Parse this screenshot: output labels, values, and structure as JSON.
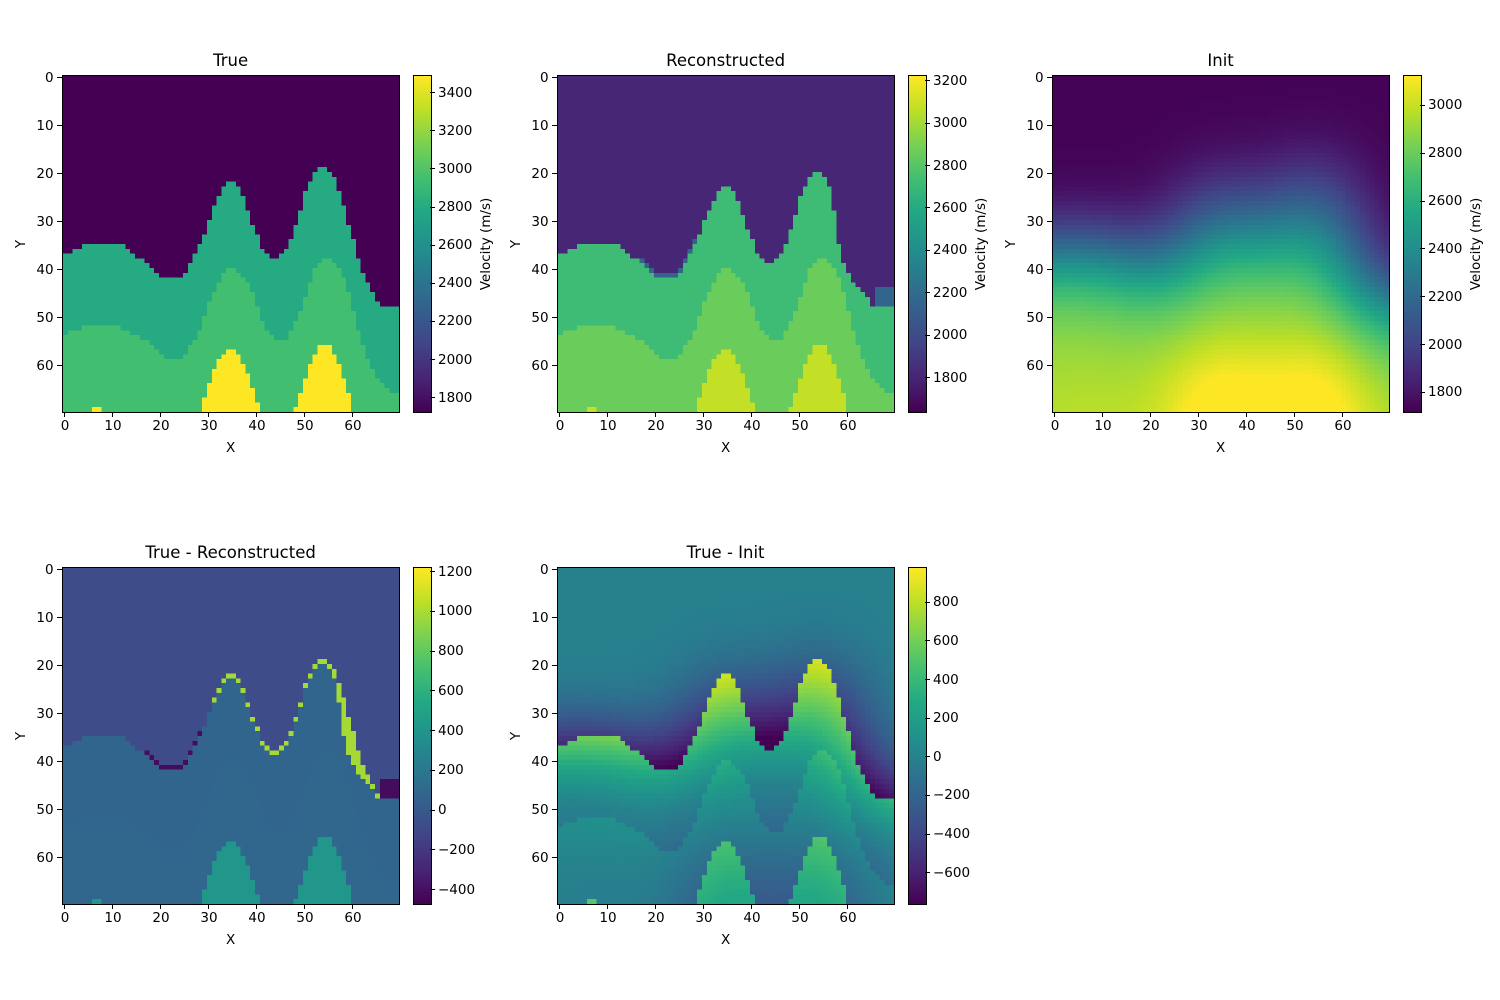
{
  "chart_data": {
    "type": "heatmap",
    "colormap": "viridis",
    "grid": {
      "nx": 70,
      "ny": 70
    },
    "x_ticks": [
      0,
      10,
      20,
      30,
      40,
      50,
      60
    ],
    "x_tick_labels": [
      "0",
      "10",
      "20",
      "30",
      "40",
      "50",
      "60"
    ],
    "y_ticks": [
      0,
      10,
      20,
      30,
      40,
      50,
      60
    ],
    "y_tick_labels": [
      "0",
      "10",
      "20",
      "30",
      "40",
      "50",
      "60"
    ],
    "panels": [
      {
        "id": "true",
        "source": "true",
        "title": "True",
        "xlabel": "X",
        "ylabel": "Y",
        "colorbar_label": "Velocity (m/s)",
        "clim": [
          1727,
          3490
        ],
        "cbar_ticks": [
          1800,
          2000,
          2200,
          2400,
          2600,
          2800,
          3000,
          3200,
          3400
        ],
        "cbar_tick_labels": [
          "1800",
          "2000",
          "2200",
          "2400",
          "2600",
          "2800",
          "3000",
          "3200",
          "3400"
        ]
      },
      {
        "id": "recon",
        "source": "recon",
        "title": "Reconstructed",
        "xlabel": "X",
        "ylabel": "Y",
        "colorbar_label": "Velocity (m/s)",
        "clim": [
          1640,
          3224
        ],
        "cbar_ticks": [
          1800,
          2000,
          2200,
          2400,
          2600,
          2800,
          3000,
          3200
        ],
        "cbar_tick_labels": [
          "1800",
          "2000",
          "2200",
          "2400",
          "2600",
          "2800",
          "3000",
          "3200"
        ]
      },
      {
        "id": "init",
        "source": "init",
        "title": "Init",
        "xlabel": "X",
        "ylabel": "Y",
        "colorbar_label": "Velocity (m/s)",
        "clim": [
          1720,
          3125
        ],
        "cbar_ticks": [
          1800,
          2000,
          2200,
          2400,
          2600,
          2800,
          3000
        ],
        "cbar_tick_labels": [
          "1800",
          "2000",
          "2200",
          "2400",
          "2600",
          "2800",
          "3000"
        ]
      },
      {
        "id": "tr",
        "source": "true-recon",
        "title": "True - Reconstructed",
        "xlabel": "X",
        "ylabel": "Y",
        "colorbar_label": "",
        "clim": [
          -470,
          1220
        ],
        "cbar_ticks": [
          -400,
          -200,
          0,
          200,
          400,
          600,
          800,
          1000,
          1200
        ],
        "cbar_tick_labels": [
          "−400",
          "−200",
          "0",
          "200",
          "400",
          "600",
          "800",
          "1000",
          "1200"
        ]
      },
      {
        "id": "ti",
        "source": "true-init",
        "title": "True - Init",
        "xlabel": "X",
        "ylabel": "Y",
        "colorbar_label": "",
        "clim": [
          -760,
          980
        ],
        "cbar_ticks": [
          -600,
          -400,
          -200,
          0,
          200,
          400,
          600,
          800
        ],
        "cbar_tick_labels": [
          "−600",
          "−400",
          "−200",
          "0",
          "200",
          "400",
          "600",
          "800"
        ]
      }
    ],
    "true_model": {
      "layer_velocities": [
        1727,
        2800,
        2950,
        3490
      ],
      "boundary1_row": [
        37,
        37,
        36,
        36,
        35,
        35,
        35,
        35,
        35,
        35,
        35,
        35,
        35,
        36,
        37,
        38,
        38,
        39,
        40,
        41,
        42,
        42,
        42,
        42,
        42,
        41,
        39,
        37,
        35,
        33,
        30,
        27,
        25,
        23,
        22,
        22,
        23,
        25,
        28,
        31,
        33,
        36,
        37,
        38,
        38,
        37,
        36,
        34,
        31,
        28,
        24,
        22,
        20,
        19,
        19,
        20,
        21,
        24,
        27,
        31,
        34,
        38,
        41,
        43,
        45,
        47,
        48,
        48,
        48,
        48
      ],
      "boundary2_row": [
        54,
        53,
        53,
        53,
        52,
        52,
        52,
        52,
        52,
        52,
        52,
        52,
        53,
        53,
        54,
        54,
        55,
        55,
        56,
        57,
        58,
        59,
        59,
        59,
        59,
        58,
        56,
        55,
        53,
        50,
        47,
        45,
        43,
        41,
        40,
        40,
        41,
        42,
        43,
        45,
        48,
        51,
        53,
        54,
        55,
        55,
        55,
        53,
        51,
        49,
        46,
        43,
        40,
        39,
        38,
        38,
        39,
        40,
        42,
        45,
        49,
        53,
        56,
        59,
        61,
        63,
        64,
        65,
        66,
        66
      ],
      "dome_top_row": [
        70,
        70,
        70,
        70,
        70,
        70,
        69,
        69,
        70,
        70,
        70,
        70,
        70,
        70,
        70,
        70,
        70,
        70,
        70,
        70,
        70,
        70,
        70,
        70,
        70,
        70,
        70,
        70,
        70,
        67,
        64,
        61,
        59,
        58,
        57,
        57,
        58,
        60,
        62,
        65,
        68,
        70,
        70,
        70,
        70,
        70,
        70,
        70,
        69,
        66,
        63,
        60,
        58,
        56,
        56,
        56,
        58,
        60,
        63,
        66,
        70,
        70,
        70,
        70,
        70,
        70,
        70,
        70,
        70,
        70
      ]
    },
    "reconstructed_model": {
      "layer_velocities": [
        1810,
        2720,
        2860,
        3080
      ],
      "transition_velocity": 2150,
      "boundary1_shift": [
        0,
        0,
        0,
        0,
        0,
        0,
        0,
        0,
        0,
        0,
        0,
        0,
        0,
        0,
        0,
        0,
        0,
        -1,
        -1,
        -1,
        -1,
        -1,
        -1,
        -1,
        -1,
        -1,
        -1,
        -1,
        -1,
        0,
        0,
        1,
        1,
        1,
        1,
        1,
        1,
        1,
        1,
        1,
        1,
        1,
        1,
        1,
        1,
        1,
        1,
        1,
        1,
        1,
        1,
        1,
        1,
        1,
        1,
        1,
        2,
        4,
        8,
        8,
        7,
        5,
        3,
        2,
        1,
        1,
        -4,
        -4,
        -4,
        -4
      ]
    },
    "init_model": {
      "gaussian_sigma_cells": 8
    }
  }
}
